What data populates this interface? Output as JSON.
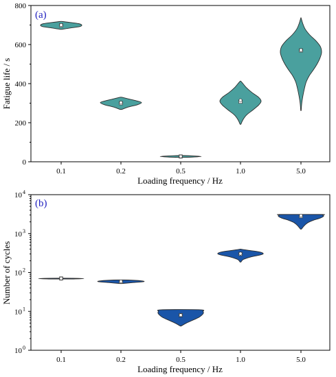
{
  "chart_data": [
    {
      "type": "violin",
      "panel_label": "(a)",
      "xlabel": "Loading frequency / Hz",
      "ylabel": "Fatigue life / s",
      "categories": [
        "0.1",
        "0.2",
        "0.5",
        "1.0",
        "5.0"
      ],
      "ylim": [
        0,
        800
      ],
      "yscale": "linear",
      "yticks": [
        0,
        200,
        400,
        600,
        800
      ],
      "ytick_labels": [
        "0",
        "200",
        "400",
        "600",
        "800"
      ],
      "fill_color": "#4aa09e",
      "violins": [
        {
          "category": "0.1",
          "min": 678,
          "max": 718,
          "median": 700,
          "mean": 698,
          "profile": [
            [
              678,
              0.05
            ],
            [
              685,
              0.45
            ],
            [
              692,
              0.9
            ],
            [
              700,
              1.0
            ],
            [
              707,
              0.85
            ],
            [
              713,
              0.45
            ],
            [
              718,
              0.05
            ]
          ]
        },
        {
          "category": "0.2",
          "min": 268,
          "max": 330,
          "median": 303,
          "mean": 300,
          "profile": [
            [
              268,
              0.05
            ],
            [
              280,
              0.35
            ],
            [
              292,
              0.8
            ],
            [
              303,
              1.0
            ],
            [
              312,
              0.75
            ],
            [
              322,
              0.35
            ],
            [
              330,
              0.05
            ]
          ]
        },
        {
          "category": "0.5",
          "min": 22,
          "max": 32,
          "median": 27,
          "mean": 27,
          "profile": [
            [
              22,
              0.05
            ],
            [
              24,
              0.6
            ],
            [
              27,
              1.0
            ],
            [
              30,
              0.6
            ],
            [
              32,
              0.05
            ]
          ]
        },
        {
          "category": "1.0",
          "min": 192,
          "max": 412,
          "median": 315,
          "mean": 308,
          "profile": [
            [
              192,
              0.02
            ],
            [
              215,
              0.12
            ],
            [
              240,
              0.3
            ],
            [
              265,
              0.6
            ],
            [
              290,
              0.88
            ],
            [
              310,
              1.0
            ],
            [
              330,
              0.88
            ],
            [
              355,
              0.55
            ],
            [
              380,
              0.28
            ],
            [
              400,
              0.12
            ],
            [
              412,
              0.02
            ]
          ]
        },
        {
          "category": "5.0",
          "min": 262,
          "max": 735,
          "median": 572,
          "mean": 570,
          "profile": [
            [
              262,
              0.01
            ],
            [
              300,
              0.04
            ],
            [
              340,
              0.1
            ],
            [
              380,
              0.18
            ],
            [
              410,
              0.26
            ],
            [
              440,
              0.4
            ],
            [
              470,
              0.6
            ],
            [
              500,
              0.78
            ],
            [
              530,
              0.92
            ],
            [
              560,
              1.0
            ],
            [
              590,
              0.94
            ],
            [
              620,
              0.72
            ],
            [
              650,
              0.42
            ],
            [
              680,
              0.2
            ],
            [
              710,
              0.08
            ],
            [
              735,
              0.01
            ]
          ]
        }
      ]
    },
    {
      "type": "violin",
      "panel_label": "(b)",
      "xlabel": "Loading frequency / Hz",
      "ylabel": "Number of cycles",
      "categories": [
        "0.1",
        "0.2",
        "0.5",
        "1.0",
        "5.0"
      ],
      "ylim": [
        1,
        10000
      ],
      "yscale": "log",
      "yticks": [
        1,
        10,
        100,
        1000,
        10000
      ],
      "ytick_labels": [
        "10",
        "10",
        "10",
        "10",
        "10"
      ],
      "ytick_exponents": [
        "0",
        "1",
        "2",
        "3",
        "4"
      ],
      "fill_color": "#1a55a8",
      "violins": [
        {
          "category": "0.1",
          "min": 68,
          "max": 71,
          "median": 70,
          "mean": 70,
          "profile": [
            [
              68,
              0.5
            ],
            [
              69.5,
              1.0
            ],
            [
              71,
              0.5
            ]
          ]
        },
        {
          "category": "0.2",
          "min": 52,
          "max": 64,
          "median": 59,
          "mean": 58,
          "profile": [
            [
              52,
              0.05
            ],
            [
              55,
              0.55
            ],
            [
              58,
              1.0
            ],
            [
              61,
              0.9
            ],
            [
              64,
              0.3
            ]
          ]
        },
        {
          "category": "0.5",
          "min": 4.2,
          "max": 11,
          "median": 8,
          "mean": 8,
          "profile": [
            [
              4.2,
              0.02
            ],
            [
              5,
              0.25
            ],
            [
              6,
              0.55
            ],
            [
              7,
              0.8
            ],
            [
              8,
              0.93
            ],
            [
              9,
              1.0
            ],
            [
              10,
              0.98
            ],
            [
              11,
              0.85
            ]
          ]
        },
        {
          "category": "1.0",
          "min": 185,
          "max": 395,
          "median": 305,
          "mean": 300,
          "profile": [
            [
              185,
              0.02
            ],
            [
              215,
              0.12
            ],
            [
              250,
              0.45
            ],
            [
              285,
              0.9
            ],
            [
              310,
              1.0
            ],
            [
              340,
              0.8
            ],
            [
              370,
              0.35
            ],
            [
              395,
              0.05
            ]
          ]
        },
        {
          "category": "5.0",
          "min": 1300,
          "max": 3100,
          "median": 2900,
          "mean": 2800,
          "profile": [
            [
              1300,
              0.02
            ],
            [
              1600,
              0.15
            ],
            [
              1900,
              0.3
            ],
            [
              2200,
              0.55
            ],
            [
              2500,
              0.85
            ],
            [
              2800,
              1.0
            ],
            [
              3000,
              0.95
            ],
            [
              3100,
              0.9
            ]
          ]
        }
      ]
    }
  ]
}
